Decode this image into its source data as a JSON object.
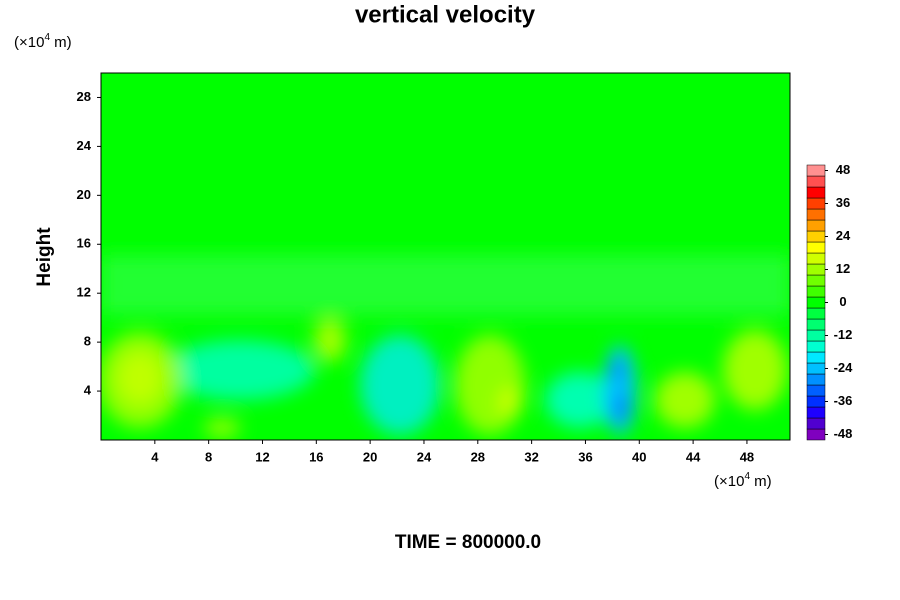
{
  "chart_data": {
    "type": "contour",
    "title": "vertical velocity",
    "ylabel": "Height",
    "footer": "TIME = 800000.0",
    "x_unit": {
      "prefix": "(×10",
      "exponent": "4",
      "suffix": " m)"
    },
    "y_unit": {
      "prefix": "(×10",
      "exponent": "4",
      "suffix": " m)"
    },
    "xlim": [
      0,
      51.2
    ],
    "xticks": [
      4,
      8,
      12,
      16,
      20,
      24,
      28,
      32,
      36,
      40,
      44,
      48
    ],
    "ylim": [
      0,
      30
    ],
    "yticks": [
      4,
      8,
      12,
      16,
      20,
      24,
      28
    ],
    "colorbar": {
      "lim": [
        -50,
        50
      ],
      "ticks": [
        -48,
        -36,
        -24,
        -12,
        0,
        12,
        24,
        36,
        48
      ],
      "colors": [
        "#7f00bf",
        "#5000d0",
        "#1e00ff",
        "#0030ff",
        "#0060ff",
        "#0090ff",
        "#00c0ff",
        "#00e8ff",
        "#00ffd0",
        "#00ffa0",
        "#00ff70",
        "#00ff40",
        "#00ff00",
        "#40ff00",
        "#70ff00",
        "#a0ff00",
        "#d0ff00",
        "#ffff00",
        "#ffd000",
        "#ffa000",
        "#ff7000",
        "#ff4000",
        "#ff0000",
        "#ff5050",
        "#ff9090"
      ]
    }
  }
}
